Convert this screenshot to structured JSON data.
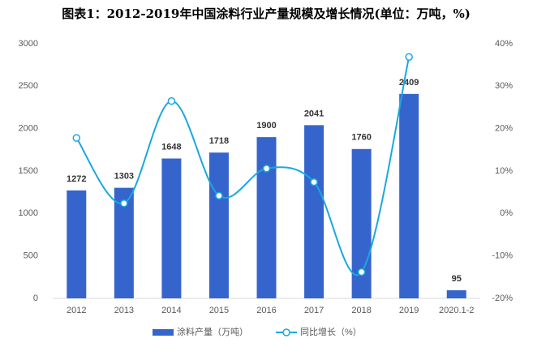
{
  "chart_data": {
    "type": "bar-line",
    "title": "图表1：2012-2019年中国涂料行业产量规模及增长情况(单位：万吨，%)",
    "categories": [
      "2012",
      "2013",
      "2014",
      "2015",
      "2016",
      "2017",
      "2018",
      "2019",
      "2020.1-2"
    ],
    "series": [
      {
        "name": "涂料产量（万吨）",
        "color": "#3565cc",
        "type": "bar",
        "values": [
          1272,
          1303,
          1648,
          1718,
          1900,
          2041,
          1760,
          2409,
          95
        ]
      },
      {
        "name": "同比增长（%）",
        "color": "#1aa7e0",
        "type": "line",
        "axis": "y2",
        "values": [
          17.8,
          2.4,
          26.5,
          4.2,
          10.6,
          7.4,
          -13.8,
          36.9,
          null
        ]
      }
    ],
    "ylim": [
      0,
      3000
    ],
    "yticks": [
      0,
      500,
      1000,
      1500,
      2000,
      2500,
      3000
    ],
    "y2lim": [
      -20,
      40
    ],
    "y2ticks": [
      {
        "value": -20,
        "label": "-20%"
      },
      {
        "value": -10,
        "label": "-10%"
      },
      {
        "value": 0,
        "label": "0%"
      },
      {
        "value": 10,
        "label": "10%"
      },
      {
        "value": 20,
        "label": "20%"
      },
      {
        "value": 30,
        "label": "30%"
      },
      {
        "value": 40,
        "label": "40%"
      }
    ],
    "grid": false,
    "legend": "bottom"
  }
}
